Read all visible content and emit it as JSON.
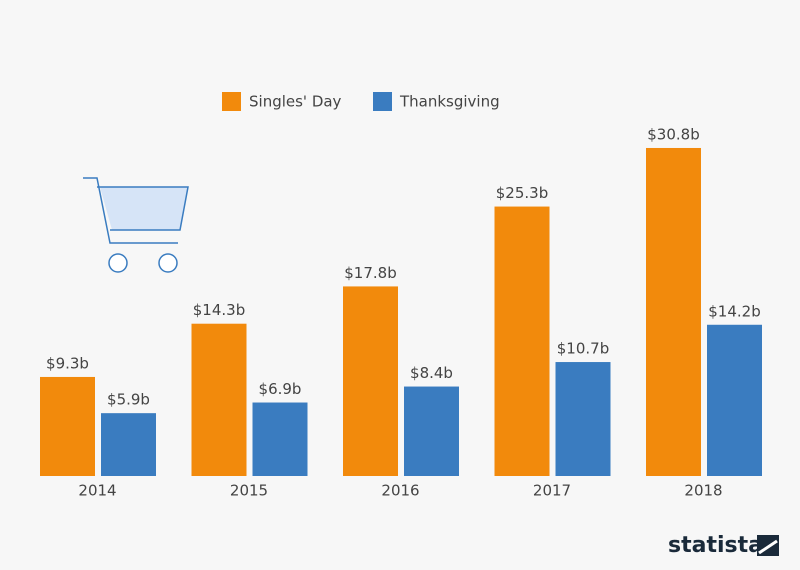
{
  "chart_data": {
    "type": "bar",
    "categories": [
      "2014",
      "2015",
      "2016",
      "2017",
      "2018"
    ],
    "series": [
      {
        "name": "Singles' Day",
        "color": "#f28a0c",
        "values": [
          9.3,
          14.3,
          17.8,
          25.3,
          30.8
        ],
        "value_labels": [
          "$9.3b",
          "$14.3b",
          "$17.8b",
          "$25.3b",
          "$30.8b"
        ]
      },
      {
        "name": "Thanksgiving",
        "color": "#3a7cc0",
        "values": [
          5.9,
          6.9,
          8.4,
          10.7,
          14.2
        ],
        "value_labels": [
          "$5.9b",
          "$6.9b",
          "$8.4b",
          "$10.7b",
          "$14.2b"
        ]
      }
    ],
    "legend": "top",
    "source_logo": "statista"
  }
}
